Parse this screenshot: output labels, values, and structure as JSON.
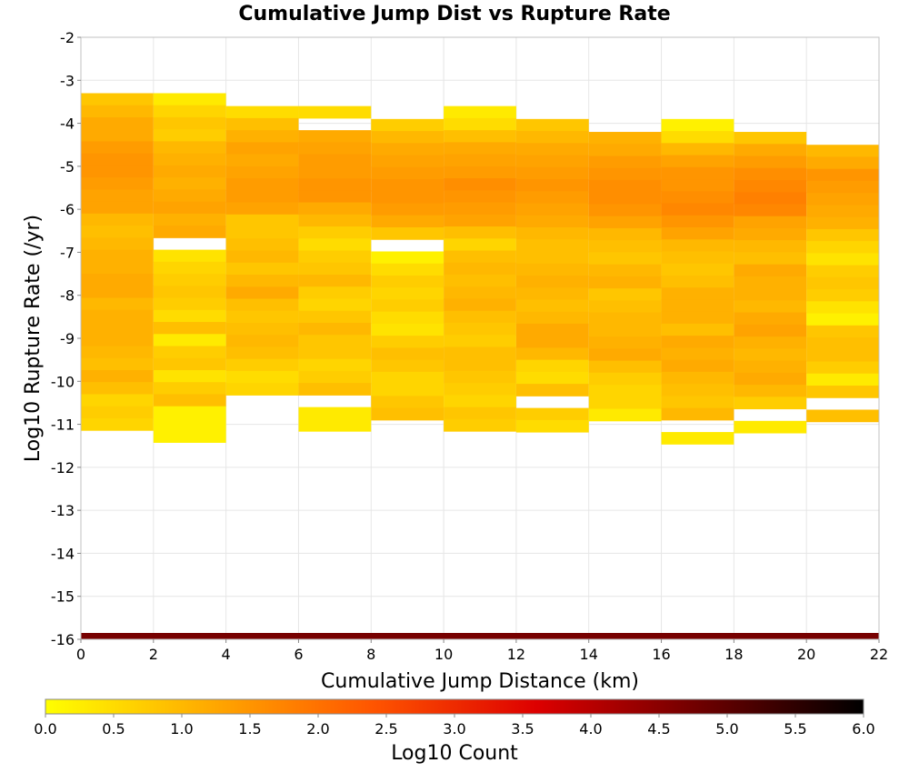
{
  "chart_data": {
    "type": "heatmap",
    "title": "Cumulative Jump Dist vs Rupture Rate",
    "xlabel": "Cumulative Jump Distance (km)",
    "ylabel": "Log10 Rupture Rate (/yr)",
    "xlim": [
      0,
      22
    ],
    "ylim": [
      -16,
      -2
    ],
    "xticks": [
      0,
      2,
      4,
      6,
      8,
      10,
      12,
      14,
      16,
      18,
      20,
      22
    ],
    "yticks": [
      -2,
      -3,
      -4,
      -5,
      -6,
      -7,
      -8,
      -9,
      -10,
      -11,
      -12,
      -13,
      -14,
      -15,
      -16
    ],
    "x_bin_width": 2,
    "y_bin_height": 0.28,
    "grid": true,
    "colorbar": {
      "label": "Log10 Count",
      "range": [
        0,
        6
      ],
      "ticks": [
        "0.0",
        "0.5",
        "1.0",
        "1.5",
        "2.0",
        "2.5",
        "3.0",
        "3.5",
        "4.0",
        "4.5",
        "5.0",
        "5.5",
        "6.0"
      ],
      "colors": [
        "#ffff00",
        "#ffaa00",
        "#ff5500",
        "#dd0000",
        "#6e0000",
        "#000000"
      ]
    },
    "columns": [
      {
        "x_start": 0,
        "y_top": -3.3,
        "values": [
          0.8,
          1.0,
          1.2,
          1.2,
          1.4,
          1.5,
          1.5,
          1.4,
          1.3,
          1.3,
          1.0,
          0.9,
          1.0,
          1.1,
          1.1,
          1.2,
          1.2,
          1.0,
          1.1,
          1.1,
          1.1,
          1.0,
          0.9,
          1.1,
          0.9,
          0.6,
          0.7,
          0.6
        ]
      },
      {
        "x_start": 2,
        "y_top": -3.3,
        "values": [
          0.3,
          0.6,
          0.8,
          0.7,
          1.0,
          1.1,
          1.2,
          1.1,
          1.2,
          1.3,
          1.1,
          1.2,
          null,
          0.4,
          0.6,
          0.7,
          0.8,
          0.7,
          0.5,
          0.9,
          0.3,
          0.7,
          0.8,
          0.4,
          0.7,
          0.9,
          0.2,
          0.2,
          0.2
        ]
      },
      {
        "x_start": 4,
        "y_top": -3.6,
        "values": [
          0.5,
          0.9,
          1.1,
          1.3,
          1.2,
          1.3,
          1.4,
          1.4,
          1.3,
          0.8,
          0.8,
          0.9,
          1.0,
          0.8,
          1.0,
          1.2,
          0.9,
          0.8,
          0.9,
          1.0,
          0.9,
          0.7,
          0.5,
          0.6
        ]
      },
      {
        "x_start": 6,
        "y_top": -3.6,
        "values": [
          0.5,
          null,
          1.2,
          1.3,
          1.4,
          1.4,
          1.5,
          1.5,
          1.2,
          1.0,
          0.7,
          0.5,
          0.7,
          0.8,
          1.0,
          0.7,
          0.6,
          0.8,
          1.0,
          0.8,
          0.8,
          0.6,
          0.7,
          0.9,
          null,
          0.3,
          0.3
        ]
      },
      {
        "x_start": 8,
        "y_top": -3.9,
        "values": [
          0.7,
          1.0,
          1.2,
          1.3,
          1.4,
          1.5,
          1.5,
          1.4,
          1.2,
          0.8,
          null,
          0.2,
          0.5,
          0.7,
          0.6,
          0.7,
          0.5,
          0.4,
          0.7,
          0.9,
          0.8,
          0.6,
          0.6,
          0.8,
          0.9
        ]
      },
      {
        "x_start": 10,
        "y_top": -3.6,
        "values": [
          0.3,
          0.5,
          0.9,
          1.2,
          1.3,
          1.4,
          1.6,
          1.5,
          1.4,
          1.3,
          0.9,
          0.6,
          0.9,
          1.0,
          0.9,
          1.0,
          1.1,
          0.9,
          0.8,
          0.7,
          0.9,
          0.9,
          0.8,
          0.7,
          0.6,
          0.8,
          0.7
        ]
      },
      {
        "x_start": 12,
        "y_top": -3.9,
        "values": [
          0.8,
          1.0,
          1.2,
          1.3,
          1.4,
          1.5,
          1.4,
          1.3,
          1.2,
          1.0,
          0.9,
          0.9,
          1.0,
          1.1,
          1.0,
          0.9,
          1.0,
          1.2,
          1.2,
          1.0,
          0.6,
          0.5,
          0.9,
          null,
          0.7,
          0.5
        ]
      },
      {
        "x_start": 14,
        "y_top": -4.2,
        "values": [
          1.1,
          1.2,
          1.4,
          1.5,
          1.6,
          1.6,
          1.5,
          1.3,
          1.0,
          0.9,
          0.8,
          1.0,
          1.1,
          0.8,
          0.9,
          1.0,
          1.0,
          1.1,
          1.2,
          0.9,
          0.7,
          0.6,
          0.6,
          0.3
        ]
      },
      {
        "x_start": 16,
        "y_top": -3.9,
        "values": [
          0.2,
          0.5,
          1.0,
          1.3,
          1.5,
          1.5,
          1.6,
          1.7,
          1.5,
          1.3,
          1.0,
          0.9,
          0.8,
          0.9,
          1.1,
          1.1,
          1.1,
          0.9,
          1.2,
          1.1,
          1.2,
          1.0,
          0.9,
          0.8,
          1.0,
          null,
          0.3
        ]
      },
      {
        "x_start": 18,
        "y_top": -4.2,
        "values": [
          0.8,
          1.2,
          1.4,
          1.6,
          1.7,
          1.8,
          1.7,
          1.3,
          1.2,
          1.0,
          0.9,
          1.2,
          1.1,
          1.1,
          1.0,
          1.2,
          1.3,
          1.1,
          1.0,
          1.1,
          1.2,
          1.0,
          0.7,
          null,
          0.3
        ]
      },
      {
        "x_start": 20,
        "y_top": -4.5,
        "values": [
          1.0,
          1.2,
          1.5,
          1.4,
          1.3,
          1.2,
          1.1,
          0.8,
          0.6,
          0.4,
          0.7,
          0.8,
          0.7,
          0.4,
          0.2,
          0.8,
          0.9,
          0.9,
          0.7,
          0.3,
          0.8,
          null,
          0.9
        ]
      }
    ],
    "bottom_row": {
      "y": -16,
      "value": 4.7
    }
  }
}
